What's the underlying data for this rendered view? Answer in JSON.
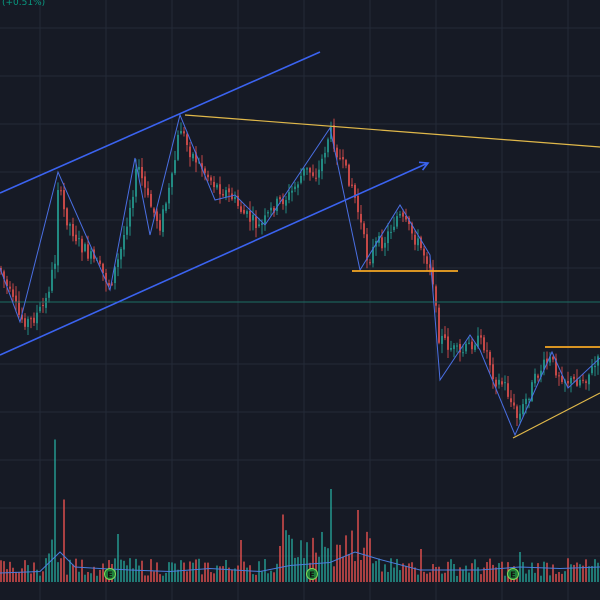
{
  "header": {
    "change_text": "(+0.51%)"
  },
  "colors": {
    "background": "#161a25",
    "grid": "#242a38",
    "up": "#26a69a",
    "down": "#ef5350",
    "channel": "#3b63f0",
    "zigzag": "#4a6fe3",
    "trendline": "#e0b84a",
    "level": "#f5a623",
    "volume_ma": "#4a7ddc",
    "price_line": "#1c6e63"
  },
  "chart_data": {
    "type": "candlestick",
    "title": "",
    "xlabel": "",
    "ylabel": "",
    "grid": true,
    "price_anchors": [
      [
        0,
        268
      ],
      [
        8,
        290
      ],
      [
        20,
        318
      ],
      [
        30,
        322
      ],
      [
        45,
        305
      ],
      [
        55,
        260
      ],
      [
        58,
        185
      ],
      [
        65,
        215
      ],
      [
        80,
        245
      ],
      [
        95,
        262
      ],
      [
        110,
        285
      ],
      [
        120,
        255
      ],
      [
        130,
        205
      ],
      [
        138,
        165
      ],
      [
        148,
        200
      ],
      [
        160,
        225
      ],
      [
        172,
        180
      ],
      [
        180,
        125
      ],
      [
        188,
        148
      ],
      [
        200,
        165
      ],
      [
        215,
        185
      ],
      [
        230,
        195
      ],
      [
        245,
        215
      ],
      [
        260,
        228
      ],
      [
        275,
        205
      ],
      [
        290,
        195
      ],
      [
        305,
        170
      ],
      [
        318,
        175
      ],
      [
        330,
        130
      ],
      [
        340,
        160
      ],
      [
        352,
        185
      ],
      [
        360,
        220
      ],
      [
        368,
        262
      ],
      [
        375,
        245
      ],
      [
        385,
        240
      ],
      [
        398,
        215
      ],
      [
        410,
        230
      ],
      [
        425,
        255
      ],
      [
        432,
        268
      ],
      [
        438,
        335
      ],
      [
        448,
        345
      ],
      [
        460,
        355
      ],
      [
        475,
        340
      ],
      [
        485,
        345
      ],
      [
        495,
        380
      ],
      [
        505,
        385
      ],
      [
        512,
        405
      ],
      [
        518,
        420
      ],
      [
        528,
        395
      ],
      [
        540,
        370
      ],
      [
        550,
        360
      ],
      [
        558,
        372
      ],
      [
        570,
        382
      ],
      [
        585,
        378
      ],
      [
        600,
        360
      ]
    ],
    "zigzag": [
      [
        0,
        268
      ],
      [
        20,
        322
      ],
      [
        58,
        172
      ],
      [
        110,
        290
      ],
      [
        135,
        158
      ],
      [
        150,
        235
      ],
      [
        180,
        115
      ],
      [
        215,
        200
      ],
      [
        235,
        195
      ],
      [
        265,
        225
      ],
      [
        330,
        128
      ],
      [
        360,
        270
      ],
      [
        400,
        205
      ],
      [
        430,
        255
      ],
      [
        440,
        380
      ],
      [
        470,
        335
      ],
      [
        480,
        350
      ],
      [
        515,
        435
      ],
      [
        552,
        352
      ],
      [
        568,
        388
      ],
      [
        600,
        358
      ]
    ],
    "volume": {
      "spikes": [
        [
          55,
          0.95
        ],
        [
          64,
          0.55
        ],
        [
          117,
          0.32
        ],
        [
          240,
          0.28
        ],
        [
          282,
          0.45
        ],
        [
          330,
          0.62
        ],
        [
          357,
          0.48
        ],
        [
          422,
          0.22
        ],
        [
          520,
          0.2
        ]
      ],
      "ma_points": [
        [
          0,
          0.06
        ],
        [
          40,
          0.07
        ],
        [
          60,
          0.2
        ],
        [
          75,
          0.1
        ],
        [
          100,
          0.09
        ],
        [
          130,
          0.08
        ],
        [
          170,
          0.07
        ],
        [
          210,
          0.09
        ],
        [
          260,
          0.07
        ],
        [
          290,
          0.11
        ],
        [
          330,
          0.13
        ],
        [
          355,
          0.2
        ],
        [
          380,
          0.15
        ],
        [
          420,
          0.08
        ],
        [
          480,
          0.08
        ],
        [
          520,
          0.1
        ],
        [
          560,
          0.09
        ],
        [
          600,
          0.1
        ]
      ]
    },
    "event_markers": [
      {
        "x": 110,
        "label": "E"
      },
      {
        "x": 312,
        "label": "E"
      },
      {
        "x": 513,
        "label": "E"
      }
    ],
    "drawings": {
      "channel_lines": [
        [
          [
            0,
            193
          ],
          [
            320,
            52
          ]
        ],
        [
          [
            0,
            355
          ],
          [
            428,
            163
          ]
        ]
      ],
      "trendlines": [
        [
          [
            185,
            115
          ],
          [
            600,
            147
          ]
        ],
        [
          [
            513,
            438
          ],
          [
            600,
            393
          ]
        ]
      ],
      "levels": [
        [
          [
            352,
            271
          ],
          [
            458,
            271
          ]
        ],
        [
          [
            545,
            347
          ],
          [
            600,
            347
          ]
        ]
      ],
      "price_line_y": 302
    }
  }
}
